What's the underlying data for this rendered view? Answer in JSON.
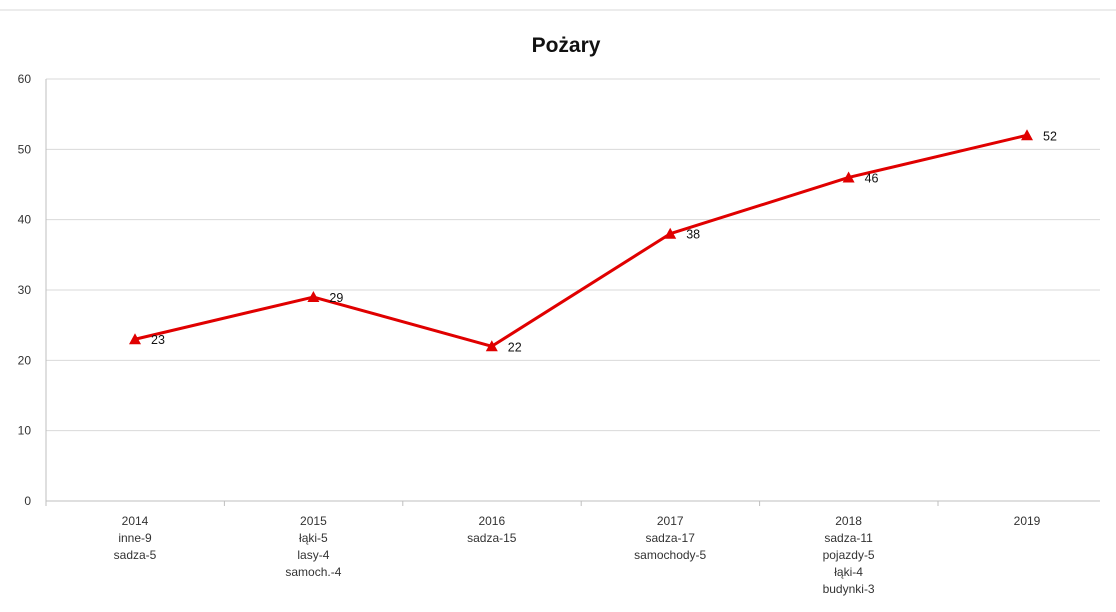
{
  "chart_data": {
    "type": "line",
    "title": "Pożary",
    "xlabel": "",
    "ylabel": "",
    "ylim": [
      0,
      60
    ],
    "y_ticks": [
      0,
      10,
      20,
      30,
      40,
      50,
      60
    ],
    "grid": true,
    "legend": "none",
    "categories": [
      {
        "year": "2014",
        "notes": [
          "inne-9",
          "sadza-5"
        ]
      },
      {
        "year": "2015",
        "notes": [
          "łąki-5",
          "lasy-4",
          "samoch.-4"
        ]
      },
      {
        "year": "2016",
        "notes": [
          "sadza-15"
        ]
      },
      {
        "year": "2017",
        "notes": [
          "sadza-17",
          "samochody-5"
        ]
      },
      {
        "year": "2018",
        "notes": [
          "sadza-11",
          "pojazdy-5",
          "łąki-4",
          "budynki-3"
        ]
      },
      {
        "year": "2019",
        "notes": []
      }
    ],
    "series": [
      {
        "values": [
          23,
          29,
          22,
          38,
          46,
          52
        ],
        "data_labels": [
          "23",
          "29",
          "22",
          "38",
          "46",
          "52"
        ],
        "color": "#e00000",
        "marker": "triangle"
      }
    ]
  }
}
